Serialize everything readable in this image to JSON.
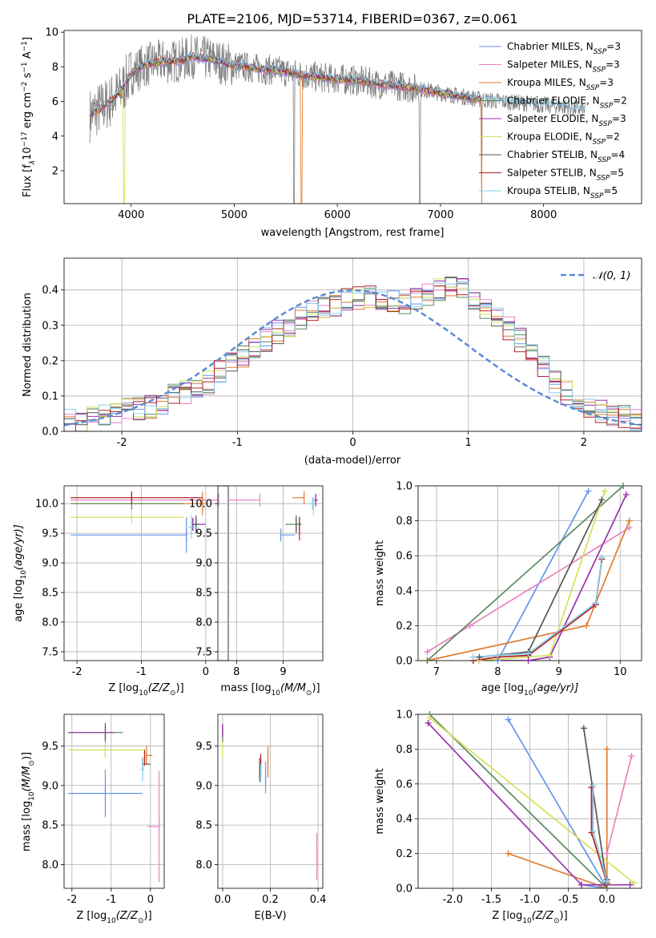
{
  "figure": {
    "title": "PLATE=2106, MJD=53714, FIBERID=0367, z=0.061"
  },
  "series_colors": [
    "#6495ed",
    "#e883c0",
    "#e07b2e",
    "#5a8a5e",
    "#9933aa",
    "#d4e157",
    "#555555",
    "#b22222",
    "#87ceeb"
  ],
  "data_color": "#808080",
  "chart_data": [
    {
      "id": "spectrum",
      "type": "line",
      "xlabel": "wavelength [Angstrom, rest frame]",
      "ylabel": "Flux [f",
      "ylabel_sub": "λ",
      "ylabel_rest": "10",
      "ylabel_exp1": "−17",
      "ylabel_mid": " erg cm",
      "ylabel_exp2": "−2",
      "ylabel_mid2": " s",
      "ylabel_exp3": "−1",
      "ylabel_end": " A",
      "ylabel_exp4": "−1",
      "ylabel_close": "]",
      "xlim": [
        3350,
        8950
      ],
      "ylim": [
        0.1,
        10.1
      ],
      "xticks": [
        4000,
        5000,
        6000,
        7000,
        8000
      ],
      "yticks": [
        2,
        4,
        6,
        8,
        10
      ],
      "legend": [
        {
          "name": "Chabrier MILES",
          "nssp": "3"
        },
        {
          "name": "Salpeter MILES",
          "nssp": "3"
        },
        {
          "name": "Kroupa MILES",
          "nssp": "3"
        },
        {
          "name": "Chabrier ELODIE",
          "nssp": "2"
        },
        {
          "name": "Salpeter ELODIE",
          "nssp": "3"
        },
        {
          "name": "Kroupa ELODIE",
          "nssp": "2"
        },
        {
          "name": "Chabrier STELIB",
          "nssp": "4"
        },
        {
          "name": "Salpeter STELIB",
          "nssp": "5"
        },
        {
          "name": "Kroupa STELIB",
          "nssp": "5"
        }
      ],
      "legend_nssp_prefix": "N",
      "legend_nssp_sub": "SSP",
      "continuum_x": [
        3600,
        3700,
        3800,
        3900,
        4000,
        4100,
        4200,
        4300,
        4400,
        4500,
        4600,
        4700,
        4800,
        4900,
        5000,
        5200,
        5400,
        5600,
        5800,
        6000,
        6200,
        6400,
        6600,
        6800,
        7000,
        7200,
        7400,
        7600,
        7800,
        8000,
        8200,
        8400,
        8600,
        8800
      ],
      "continuum_y": [
        5.2,
        5.6,
        6.0,
        6.6,
        7.6,
        8.0,
        8.2,
        8.3,
        8.3,
        8.4,
        8.6,
        8.5,
        8.4,
        8.2,
        8.1,
        7.9,
        7.8,
        7.6,
        7.4,
        7.3,
        7.2,
        7.0,
        6.9,
        6.7,
        6.5,
        6.3,
        6.1,
        6.0,
        5.9,
        5.8,
        5.7,
        5.5,
        5.4,
        5.3
      ]
    },
    {
      "id": "residuals",
      "type": "histogram",
      "xlabel": "(data-model)/error",
      "ylabel": "Normed distribution",
      "xlim": [
        -2.5,
        2.5
      ],
      "ylim": [
        0,
        0.49
      ],
      "xticks": [
        -2,
        -1,
        0,
        1,
        2
      ],
      "yticks": [
        0.0,
        0.1,
        0.2,
        0.3,
        0.4
      ],
      "legend": "𝒩(0, 1)",
      "bin_width": 0.1,
      "bins_start": -2.5,
      "mean_profile": [
        0.03,
        0.03,
        0.035,
        0.04,
        0.05,
        0.06,
        0.065,
        0.07,
        0.08,
        0.1,
        0.11,
        0.125,
        0.14,
        0.17,
        0.19,
        0.21,
        0.23,
        0.26,
        0.28,
        0.3,
        0.32,
        0.34,
        0.35,
        0.36,
        0.37,
        0.38,
        0.38,
        0.37,
        0.37,
        0.36,
        0.38,
        0.39,
        0.4,
        0.41,
        0.4,
        0.38,
        0.35,
        0.32,
        0.29,
        0.26,
        0.22,
        0.18,
        0.14,
        0.11,
        0.09,
        0.07,
        0.055,
        0.045,
        0.04,
        0.035
      ]
    },
    {
      "id": "age_vs_Z",
      "type": "errorbar",
      "xlabel": "Z [log",
      "xlabel_sub": "10",
      "xlabel_rest": "(Z/Z",
      "xlabel_sun": "⊙",
      "xlabel_end": ")]",
      "ylabel": "age  [log",
      "ylabel_sub": "10",
      "ylabel_rest": "(age/yr)]",
      "xlim": [
        -2.2,
        0.35
      ],
      "ylim": [
        7.35,
        10.3
      ],
      "xticks": [
        -2,
        -1,
        0
      ],
      "yticks": [
        7.5,
        8.0,
        8.5,
        9.0,
        9.5,
        10.0
      ],
      "points": [
        {
          "x": -0.3,
          "y": 9.47,
          "xerr_lo": 1.8,
          "xerr_hi": 0.0,
          "yerr": 0.3
        },
        {
          "x": 0.2,
          "y": 10.06,
          "xerr_lo": 2.3,
          "xerr_hi": 0.0,
          "yerr": 0.0
        },
        {
          "x": -0.05,
          "y": 10.0,
          "xerr_lo": 2.0,
          "xerr_hi": 0.05,
          "yerr": 0.2
        },
        {
          "x": -1.15,
          "y": 10.0,
          "xerr_lo": 0.95,
          "xerr_hi": 0.8,
          "yerr": 0.0
        },
        {
          "x": -0.2,
          "y": 9.65,
          "xerr_lo": 0.0,
          "xerr_hi": 0.2,
          "yerr": 0.1
        },
        {
          "x": -1.15,
          "y": 9.77,
          "xerr_lo": 0.95,
          "xerr_hi": 0.8,
          "yerr": 0.0
        },
        {
          "x": -0.15,
          "y": 9.65,
          "xerr_lo": 0.05,
          "xerr_hi": 0.05,
          "yerr": 0.15
        },
        {
          "x": -1.15,
          "y": 10.1,
          "xerr_lo": 0.95,
          "xerr_hi": 1.1,
          "yerr": 0.08
        },
        {
          "x": -0.22,
          "y": 9.6,
          "xerr_lo": 0.05,
          "xerr_hi": 0.1,
          "yerr": 0.2
        }
      ]
    },
    {
      "id": "age_vs_mass",
      "type": "errorbar",
      "xlabel": "mass [log",
      "xlabel_sub": "10",
      "xlabel_rest": "(M/M",
      "xlabel_sun": "⊙",
      "xlabel_end": ")]",
      "xlim": [
        7.6,
        9.85
      ],
      "ylim": [
        7.35,
        10.3
      ],
      "xticks": [
        8,
        9
      ],
      "yticks": [
        7.5,
        8.0,
        8.5,
        9.0,
        9.5,
        10.0
      ],
      "points": [
        {
          "x": 8.95,
          "y": 9.47,
          "xerr_lo": 0.0,
          "xerr_hi": 0.3,
          "yerr": 0.0
        },
        {
          "x": 8.5,
          "y": 10.06,
          "xerr_lo": 0.7,
          "xerr_hi": 0.0,
          "yerr": 0.0
        },
        {
          "x": 9.45,
          "y": 10.1,
          "xerr_lo": 0.25,
          "xerr_hi": 0.0,
          "yerr": 0.0
        },
        {
          "x": 9.35,
          "y": 9.65,
          "xerr_lo": 0.3,
          "xerr_hi": 0.05,
          "yerr": 0.05
        },
        {
          "x": 9.7,
          "y": 10.06,
          "xerr_lo": 0.05,
          "xerr_hi": 0.05,
          "yerr": 0.08
        },
        {
          "x": 9.65,
          "y": 9.95,
          "xerr_lo": 0.0,
          "xerr_hi": 0.0,
          "yerr": 0.15
        },
        {
          "x": 9.28,
          "y": 9.65,
          "xerr_lo": 0.0,
          "xerr_hi": 0.0,
          "yerr": 0.15
        },
        {
          "x": 9.35,
          "y": 9.58,
          "xerr_lo": 0.0,
          "xerr_hi": 0.0,
          "yerr": 0.2
        },
        {
          "x": 9.63,
          "y": 10.0,
          "xerr_lo": 0.05,
          "xerr_hi": 0.05,
          "yerr": 0.1
        }
      ]
    },
    {
      "id": "massweight_vs_age",
      "type": "line",
      "xlabel": "age  [log",
      "xlabel_sub": "10",
      "xlabel_rest": "(age/yr)]",
      "ylabel": "mass weight",
      "xlim": [
        6.7,
        10.35
      ],
      "ylim": [
        0,
        1
      ],
      "xticks": [
        7,
        8,
        9,
        10
      ],
      "yticks": [
        0.0,
        0.2,
        0.4,
        0.6,
        0.8,
        1.0
      ],
      "series": [
        {
          "x": [
            7.6,
            8.0,
            9.48
          ],
          "y": [
            0.0,
            0.0,
            0.97
          ]
        },
        {
          "x": [
            6.85,
            7.55,
            10.15
          ],
          "y": [
            0.05,
            0.2,
            0.76
          ]
        },
        {
          "x": [
            6.85,
            9.45,
            10.15
          ],
          "y": [
            0.0,
            0.2,
            0.8
          ]
        },
        {
          "x": [
            6.85,
            10.05
          ],
          "y": [
            0.0,
            1.0
          ]
        },
        {
          "x": [
            7.7,
            8.5,
            8.85,
            10.1
          ],
          "y": [
            0.0,
            0.0,
            0.02,
            0.95
          ]
        },
        {
          "x": [
            7.7,
            8.85,
            9.75
          ],
          "y": [
            0.0,
            0.03,
            0.97
          ]
        },
        {
          "x": [
            7.7,
            8.5,
            9.7
          ],
          "y": [
            0.02,
            0.05,
            0.92
          ]
        },
        {
          "x": [
            7.6,
            8.0,
            8.5,
            9.6,
            9.7
          ],
          "y": [
            0.0,
            0.02,
            0.03,
            0.32,
            0.58
          ]
        },
        {
          "x": [
            7.6,
            8.0,
            8.5,
            9.6,
            9.7
          ],
          "y": [
            0.02,
            0.03,
            0.04,
            0.33,
            0.59
          ]
        }
      ]
    },
    {
      "id": "mass_vs_Z",
      "type": "errorbar",
      "xlabel": "Z [log",
      "xlabel_sub": "10",
      "xlabel_rest": "(Z/Z",
      "xlabel_sun": "⊙",
      "xlabel_end": ")]",
      "ylabel": "mass [log",
      "ylabel_sub": "10",
      "ylabel_rest": "(M/M",
      "ylabel_sun": "⊙",
      "ylabel_end": ")]",
      "xlim": [
        -2.2,
        0.35
      ],
      "ylim": [
        7.7,
        9.9
      ],
      "xticks": [
        -2,
        -1,
        0
      ],
      "yticks": [
        8.0,
        8.5,
        9.0,
        9.5
      ],
      "points": [
        {
          "x": -1.15,
          "y": 8.9,
          "xerr_lo": 0.95,
          "xerr_hi": 0.95,
          "yerr": 0.3
        },
        {
          "x": 0.22,
          "y": 8.48,
          "xerr_lo": 0.3,
          "xerr_hi": 0.0,
          "yerr": 0.7
        },
        {
          "x": -0.1,
          "y": 9.38,
          "xerr_lo": 0.0,
          "xerr_hi": 0.15,
          "yerr": 0.12
        },
        {
          "x": -1.15,
          "y": 9.67,
          "xerr_lo": 0.95,
          "xerr_hi": 0.45,
          "yerr": 0.0
        },
        {
          "x": -1.15,
          "y": 9.67,
          "xerr_lo": 0.95,
          "xerr_hi": 0.25,
          "yerr": 0.12
        },
        {
          "x": -1.15,
          "y": 9.45,
          "xerr_lo": 0.95,
          "xerr_hi": 1.1,
          "yerr": 0.1
        },
        {
          "x": -0.2,
          "y": 9.27,
          "xerr_lo": 0.0,
          "xerr_hi": 0.2,
          "yerr": 0.08
        },
        {
          "x": -0.15,
          "y": 9.35,
          "xerr_lo": 0.0,
          "xerr_hi": 0.0,
          "yerr": 0.1
        },
        {
          "x": -0.2,
          "y": 9.2,
          "xerr_lo": 0.05,
          "xerr_hi": 0.05,
          "yerr": 0.15
        }
      ]
    },
    {
      "id": "mass_vs_ebv",
      "type": "errorbar",
      "xlabel": "E(B-V)",
      "xlim": [
        -0.02,
        0.42
      ],
      "ylim": [
        7.7,
        9.9
      ],
      "xticks": [
        0.0,
        0.2,
        0.4
      ],
      "yticks": [
        8.0,
        8.5,
        9.0,
        9.5
      ],
      "points": [
        {
          "x": 0.18,
          "y": 9.1,
          "xerr_lo": 0.0,
          "xerr_hi": 0.0,
          "yerr": 0.2
        },
        {
          "x": 0.395,
          "y": 8.1,
          "xerr_lo": 0.0,
          "xerr_hi": 0.0,
          "yerr": 0.3
        },
        {
          "x": 0.19,
          "y": 9.3,
          "xerr_lo": 0.0,
          "xerr_hi": 0.0,
          "yerr": 0.2
        },
        {
          "x": 0.0,
          "y": 9.65,
          "xerr_lo": 0.0,
          "xerr_hi": 0.0,
          "yerr": 0.1
        },
        {
          "x": 0.0,
          "y": 9.7,
          "xerr_lo": 0.0,
          "xerr_hi": 0.0,
          "yerr": 0.08
        },
        {
          "x": 0.0,
          "y": 9.45,
          "xerr_lo": 0.0,
          "xerr_hi": 0.0,
          "yerr": 0.1
        },
        {
          "x": 0.155,
          "y": 9.2,
          "xerr_lo": 0.0,
          "xerr_hi": 0.0,
          "yerr": 0.15
        },
        {
          "x": 0.16,
          "y": 9.25,
          "xerr_lo": 0.0,
          "xerr_hi": 0.0,
          "yerr": 0.15
        },
        {
          "x": 0.16,
          "y": 9.15,
          "xerr_lo": 0.0,
          "xerr_hi": 0.0,
          "yerr": 0.12
        }
      ]
    },
    {
      "id": "massweight_vs_Z",
      "type": "line",
      "xlabel": "Z [log",
      "xlabel_sub": "10",
      "xlabel_rest": "(Z/Z",
      "xlabel_sun": "⊙",
      "xlabel_end": ")]",
      "ylabel": "mass weight",
      "xlim": [
        -2.45,
        0.45
      ],
      "ylim": [
        0,
        1
      ],
      "xticks": [
        -2.0,
        -1.5,
        -1.0,
        -0.5,
        0.0
      ],
      "yticks": [
        0.0,
        0.2,
        0.4,
        0.6,
        0.8,
        1.0
      ],
      "series": [
        {
          "x": [
            -1.28,
            0.0,
            -0.33
          ],
          "y": [
            0.97,
            0.0,
            0.02
          ]
        },
        {
          "x": [
            0.32,
            0.0,
            0.0
          ],
          "y": [
            0.76,
            0.2,
            0.0
          ]
        },
        {
          "x": [
            -1.28,
            0.0,
            0.0
          ],
          "y": [
            0.2,
            0.0,
            0.8
          ]
        },
        {
          "x": [
            -2.3,
            0.0
          ],
          "y": [
            1.0,
            0.0
          ]
        },
        {
          "x": [
            -2.32,
            -0.33,
            0.3
          ],
          "y": [
            0.95,
            0.02,
            0.02
          ]
        },
        {
          "x": [
            -2.3,
            0.35
          ],
          "y": [
            0.98,
            0.03
          ]
        },
        {
          "x": [
            -0.3,
            0.0,
            0.0
          ],
          "y": [
            0.92,
            0.02,
            0.05
          ]
        },
        {
          "x": [
            -0.2,
            -0.2,
            0.0
          ],
          "y": [
            0.58,
            0.32,
            0.03
          ]
        },
        {
          "x": [
            -0.18,
            -0.18,
            0.0
          ],
          "y": [
            0.59,
            0.33,
            0.04
          ]
        }
      ]
    }
  ]
}
